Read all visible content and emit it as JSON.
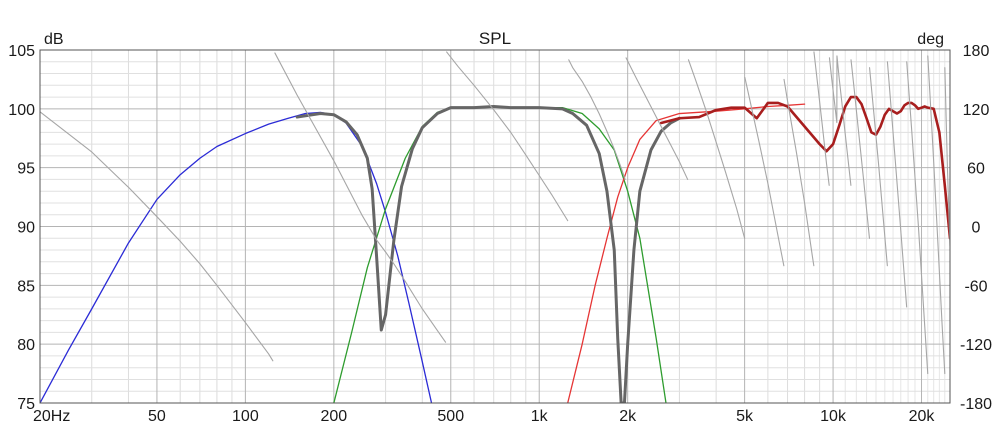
{
  "chart_data": {
    "type": "line",
    "title": "SPL",
    "ylabel": "dB",
    "ylabel_right": "deg",
    "x_scale": "log",
    "xlim": [
      20,
      25000
    ],
    "ylim": [
      75,
      105
    ],
    "ylim_right": [
      -180,
      180
    ],
    "grid": true,
    "x_ticks": [
      {
        "value": 20,
        "label": "20Hz"
      },
      {
        "value": 50,
        "label": "50"
      },
      {
        "value": 100,
        "label": "100"
      },
      {
        "value": 200,
        "label": "200"
      },
      {
        "value": 500,
        "label": "500"
      },
      {
        "value": 1000,
        "label": "1k"
      },
      {
        "value": 2000,
        "label": "2k"
      },
      {
        "value": 5000,
        "label": "5k"
      },
      {
        "value": 10000,
        "label": "10k"
      },
      {
        "value": 20000,
        "label": "20k"
      }
    ],
    "y_ticks": [
      {
        "value": 105,
        "label": "105"
      },
      {
        "value": 100,
        "label": "100"
      },
      {
        "value": 95,
        "label": "95"
      },
      {
        "value": 90,
        "label": "90"
      },
      {
        "value": 85,
        "label": "85"
      },
      {
        "value": 80,
        "label": "80"
      },
      {
        "value": 75,
        "label": "75"
      }
    ],
    "y_right_ticks": [
      {
        "value": 180,
        "label": "180"
      },
      {
        "value": 120,
        "label": "120"
      },
      {
        "value": 60,
        "label": "60"
      },
      {
        "value": 0,
        "label": "0"
      },
      {
        "value": -60,
        "label": "-60"
      },
      {
        "value": -120,
        "label": "-120"
      },
      {
        "value": -180,
        "label": "-180"
      }
    ],
    "series": [
      {
        "color": "#2b2bd6",
        "width": 1.3,
        "axis": "left",
        "x": [
          20,
          25,
          30,
          40,
          50,
          60,
          70,
          80,
          100,
          120,
          140,
          160,
          180,
          200,
          220,
          250,
          280,
          300,
          330,
          360,
          400,
          430
        ],
        "y": [
          75,
          79.5,
          83,
          88.6,
          92.3,
          94.4,
          95.8,
          96.8,
          97.9,
          98.7,
          99.2,
          99.6,
          99.7,
          99.5,
          98.8,
          96.8,
          93.6,
          91.2,
          87.5,
          83.5,
          78.5,
          75
        ]
      },
      {
        "color": "#2e9c2e",
        "width": 1.3,
        "axis": "left",
        "x": [
          200,
          230,
          260,
          300,
          350,
          400,
          450,
          500,
          600,
          700,
          800,
          1000,
          1200,
          1400,
          1600,
          1800,
          2000,
          2200,
          2500,
          2700
        ],
        "y": [
          75,
          81,
          86.5,
          91.5,
          95.8,
          98.5,
          99.7,
          100.1,
          100.1,
          100.2,
          100.1,
          100.1,
          100.1,
          99.6,
          98.3,
          96.5,
          93,
          89,
          80.5,
          75
        ]
      },
      {
        "color": "#e63535",
        "width": 1.3,
        "axis": "left",
        "x": [
          1250,
          1400,
          1550,
          1700,
          1850,
          2000,
          2200,
          2500,
          3000,
          4000,
          5000,
          6000,
          7000,
          8000
        ],
        "y": [
          75,
          80,
          85,
          89,
          92.5,
          95,
          97.4,
          99,
          99.6,
          99.8,
          100,
          100.2,
          100.3,
          100.4
        ]
      },
      {
        "color": "#666666",
        "width": 3,
        "axis": "left",
        "x": [
          150,
          180,
          200,
          220,
          240,
          260,
          270,
          280,
          290,
          300,
          320,
          340,
          370,
          400,
          450,
          500,
          600,
          700,
          800,
          1000,
          1200,
          1300,
          1450,
          1600,
          1700,
          1800,
          1850,
          1900,
          1950,
          2000,
          2100,
          2200,
          2400,
          2600,
          2800,
          3000
        ],
        "y": [
          99.3,
          99.6,
          99.5,
          98.9,
          97.8,
          95.8,
          93.2,
          87.2,
          81.2,
          82.5,
          88.8,
          93.4,
          96.6,
          98.4,
          99.6,
          100.1,
          100.1,
          100.2,
          100.1,
          100.1,
          100.0,
          99.6,
          98.6,
          96.2,
          93,
          88,
          80.5,
          75,
          75,
          80,
          88,
          93,
          96.5,
          98.1,
          98.8,
          99.2
        ]
      },
      {
        "color": "#a81e1e",
        "width": 2.6,
        "axis": "left",
        "x": [
          2600,
          3000,
          3500,
          4000,
          4500,
          5000,
          5500,
          6000,
          6500,
          7000,
          8000,
          9000,
          9500,
          10000,
          10500,
          11000,
          11500,
          12000,
          12500,
          13000,
          13500,
          14000,
          14500,
          15000,
          15500,
          16000,
          16500,
          17000,
          17500,
          18000,
          18500,
          19000,
          19500,
          20000,
          20500,
          21000,
          22000,
          23000,
          24000,
          25000
        ],
        "y": [
          98.8,
          99.2,
          99.3,
          99.9,
          100.1,
          100.1,
          99.2,
          100.5,
          100.5,
          100.2,
          98.5,
          97,
          96.4,
          97.0,
          98.6,
          100.2,
          101.0,
          101.0,
          100.4,
          99.2,
          98,
          97.8,
          98.5,
          99.5,
          100.0,
          99.8,
          99.6,
          99.8,
          100.3,
          100.5,
          100.5,
          100.3,
          100.0,
          100.1,
          100.2,
          100.1,
          100.0,
          98,
          93.5,
          89
        ]
      },
      {
        "color": "#a6a6a6",
        "width": 1.1,
        "axis": "right",
        "x": [
          20,
          30,
          40,
          50,
          60,
          70,
          80,
          90,
          100,
          120,
          124,
          126,
          150,
          200,
          250,
          280,
          300,
          320,
          350,
          400,
          450,
          480,
          484,
          530,
          600,
          700,
          800,
          900,
          1000,
          1100,
          1250,
          1260,
          1300,
          1400,
          1500,
          1600,
          1700,
          1800,
          1900,
          1960,
          1975,
          2100,
          2300,
          2600,
          3000,
          3200,
          3220,
          3400,
          3700,
          4000,
          4300,
          4700,
          5000,
          5010,
          5200,
          5600,
          6000,
          6500,
          6800,
          6810,
          7000,
          7500,
          8000,
          8500,
          8600,
          8610,
          8900,
          9200,
          9500,
          9700,
          9720,
          9900,
          10100,
          10300,
          10310,
          10500,
          10700,
          10900,
          11500,
          11510,
          11800,
          12200,
          12700,
          13300,
          13310,
          13800,
          14300,
          15300,
          15310,
          16000,
          17000,
          17800,
          17810,
          18500,
          19500,
          21000,
          21010,
          22000,
          23500,
          24000,
          24010,
          24500,
          25000
        ],
        "y": [
          117,
          76,
          40,
          10,
          -15,
          -38,
          -60,
          -80,
          -98,
          -130,
          -137,
          177,
          134,
          67,
          11,
          -14,
          -26,
          -38,
          -56,
          -84,
          -106,
          -118,
          178,
          163,
          144,
          119,
          96,
          73,
          52,
          33,
          6,
          170,
          162,
          148,
          132,
          115,
          97,
          79,
          60,
          48,
          172,
          156,
          133,
          102,
          66,
          48,
          170,
          150,
          118,
          86,
          56,
          18,
          -12,
          152,
          130,
          86,
          44,
          -10,
          -40,
          150,
          128,
          76,
          24,
          -30,
          -40,
          178,
          140,
          102,
          64,
          42,
          172,
          150,
          128,
          106,
          174,
          150,
          128,
          105,
          42,
          170,
          140,
          98,
          48,
          -12,
          162,
          112,
          62,
          -40,
          168,
          96,
          -4,
          -82,
          168,
          100,
          2,
          -150,
          174,
          66,
          -100,
          -150,
          162,
          60,
          -20
        ]
      }
    ]
  }
}
